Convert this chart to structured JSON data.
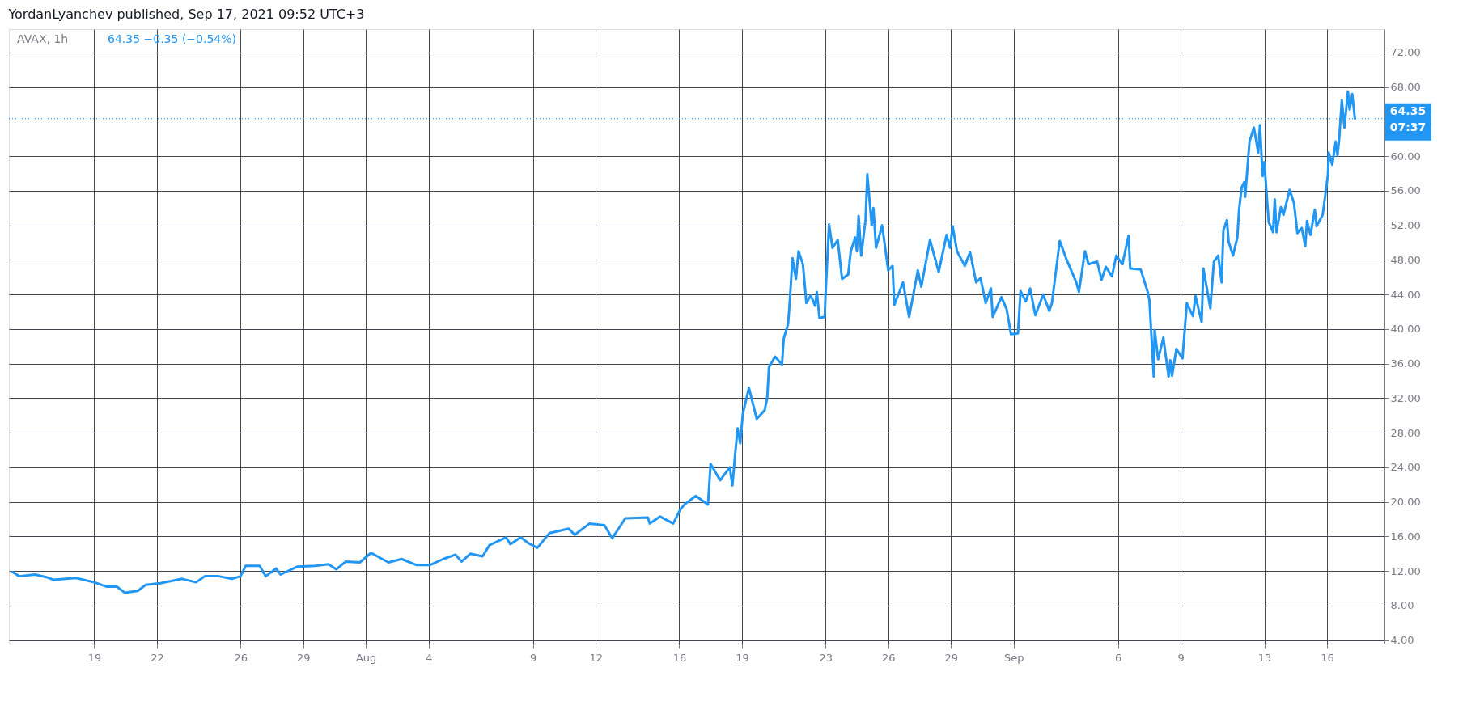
{
  "chart_data": {
    "type": "line",
    "title": "YordanLyanchev published, Sep 17, 2021 09:52 UTC+3",
    "subtitle": "AVAX, 1h",
    "annotations": [
      "64.35 −0.35 (−0.54%)",
      "07:37"
    ],
    "x": [
      "2021-07-15T02:00",
      "2021-07-15T10:00",
      "2021-07-16T04:00",
      "2021-07-16T17:00",
      "2021-07-17T01:00",
      "2021-07-18T03:00",
      "2021-07-19T00:00",
      "2021-07-19T14:00",
      "2021-07-20T02:00",
      "2021-07-20T11:00",
      "2021-07-21T02:00",
      "2021-07-21T11:00",
      "2021-07-22T04:00",
      "2021-07-23T05:00",
      "2021-07-23T21:00",
      "2021-07-24T07:00",
      "2021-07-24T23:00",
      "2021-07-25T14:00",
      "2021-07-26T00:00",
      "2021-07-26T06:00",
      "2021-07-26T22:00",
      "2021-07-27T05:00",
      "2021-07-27T17:00",
      "2021-07-27T22:00",
      "2021-07-28T17:00",
      "2021-07-29T14:00",
      "2021-07-30T05:00",
      "2021-07-30T14:00",
      "2021-07-31T01:00",
      "2021-07-31T17:00",
      "2021-08-01T06:00",
      "2021-08-02T02:00",
      "2021-08-02T17:00",
      "2021-08-03T10:00",
      "2021-08-04T02:00",
      "2021-08-04T17:00",
      "2021-08-05T07:00",
      "2021-08-05T14:00",
      "2021-08-06T00:00",
      "2021-08-06T14:00",
      "2021-08-06T22:00",
      "2021-08-07T17:00",
      "2021-08-07T22:00",
      "2021-08-08T10:00",
      "2021-08-08T19:00",
      "2021-08-09T05:00",
      "2021-08-09T19:00",
      "2021-08-10T17:00",
      "2021-08-11T00:00",
      "2021-08-11T17:00",
      "2021-08-12T10:00",
      "2021-08-12T19:00",
      "2021-08-13T10:00",
      "2021-08-14T12:00",
      "2021-08-14T14:00",
      "2021-08-15T02:00",
      "2021-08-15T17:00",
      "2021-08-16T01:00",
      "2021-08-16T06:00",
      "2021-08-16T19:00",
      "2021-08-17T09:00",
      "2021-08-17T12:00",
      "2021-08-17T23:00",
      "2021-08-18T10:00",
      "2021-08-18T13:00",
      "2021-08-18T17:00",
      "2021-08-18T19:00",
      "2021-08-18T22:00",
      "2021-08-19T01:00",
      "2021-08-19T08:00",
      "2021-08-19T17:00",
      "2021-08-20T02:00",
      "2021-08-20T05:00",
      "2021-08-20T07:00",
      "2021-08-20T14:00",
      "2021-08-20T22:00",
      "2021-08-21T00:00",
      "2021-08-21T05:00",
      "2021-08-21T07:00",
      "2021-08-21T10:00",
      "2021-08-21T14:00",
      "2021-08-21T17:00",
      "2021-08-21T22:00",
      "2021-08-22T02:00",
      "2021-08-22T07:00",
      "2021-08-22T12:00",
      "2021-08-22T14:00",
      "2021-08-22T17:00",
      "2021-08-22T23:00",
      "2021-08-23T00:00",
      "2021-08-23T04:00",
      "2021-08-23T08:00",
      "2021-08-23T14:00",
      "2021-08-23T19:00",
      "2021-08-24T02:00",
      "2021-08-24T05:00",
      "2021-08-24T10:00",
      "2021-08-24T12:00",
      "2021-08-24T14:00",
      "2021-08-24T17:00",
      "2021-08-24T22:00",
      "2021-08-25T00:00",
      "2021-08-25T05:00",
      "2021-08-25T07:00",
      "2021-08-25T10:00",
      "2021-08-25T17:00",
      "2021-08-26T00:00",
      "2021-08-26T05:00",
      "2021-08-26T07:00",
      "2021-08-26T17:00",
      "2021-08-27T00:00",
      "2021-08-27T10:00",
      "2021-08-27T14:00",
      "2021-08-28T00:00",
      "2021-08-28T10:00",
      "2021-08-28T19:00",
      "2021-08-28T23:00",
      "2021-08-29T02:00",
      "2021-08-29T07:00",
      "2021-08-29T16:00",
      "2021-08-29T22:00",
      "2021-08-30T05:00",
      "2021-08-30T10:00",
      "2021-08-30T16:00",
      "2021-08-30T22:00",
      "2021-08-31T00:00",
      "2021-08-31T10:00",
      "2021-08-31T16:00",
      "2021-08-31T21:00",
      "2021-09-01T05:00",
      "2021-09-01T08:00",
      "2021-09-01T14:00",
      "2021-09-01T19:00",
      "2021-09-02T01:00",
      "2021-09-02T10:00",
      "2021-09-02T17:00",
      "2021-09-02T20:00",
      "2021-09-03T05:00",
      "2021-09-03T13:00",
      "2021-09-04T00:00",
      "2021-09-04T03:00",
      "2021-09-04T10:00",
      "2021-09-04T14:00",
      "2021-09-05T00:00",
      "2021-09-05T05:00",
      "2021-09-05T10:00",
      "2021-09-05T17:00",
      "2021-09-05T22:00",
      "2021-09-06T05:00",
      "2021-09-06T12:00",
      "2021-09-06T14:00",
      "2021-09-07T02:00",
      "2021-09-07T10:00",
      "2021-09-07T12:00",
      "2021-09-07T17:00",
      "2021-09-07T18:00",
      "2021-09-07T22:00",
      "2021-09-08T04:00",
      "2021-09-08T10:00",
      "2021-09-08T12:00",
      "2021-09-08T14:00",
      "2021-09-08T19:00",
      "2021-09-09T02:00",
      "2021-09-09T07:00",
      "2021-09-09T14:00",
      "2021-09-09T17:00",
      "2021-09-10T00:00",
      "2021-09-10T02:00",
      "2021-09-10T10:00",
      "2021-09-10T14:00",
      "2021-09-10T19:00",
      "2021-09-10T23:00",
      "2021-09-11T01:00",
      "2021-09-11T05:00",
      "2021-09-11T07:00",
      "2021-09-11T12:00",
      "2021-09-11T17:00",
      "2021-09-11T19:00",
      "2021-09-11T22:00",
      "2021-09-12T01:00",
      "2021-09-12T02:00",
      "2021-09-12T07:00",
      "2021-09-12T12:00",
      "2021-09-12T17:00",
      "2021-09-12T19:00",
      "2021-09-12T22:00",
      "2021-09-13T00:00",
      "2021-09-13T05:00",
      "2021-09-13T10:00",
      "2021-09-13T12:00",
      "2021-09-13T14:00",
      "2021-09-13T19:00",
      "2021-09-13T22:00",
      "2021-09-14T05:00",
      "2021-09-14T10:00",
      "2021-09-14T14:00",
      "2021-09-14T19:00",
      "2021-09-14T23:00",
      "2021-09-15T01:00",
      "2021-09-15T05:00",
      "2021-09-15T10:00",
      "2021-09-15T12:00",
      "2021-09-15T19:00",
      "2021-09-16T01:00",
      "2021-09-16T02:00",
      "2021-09-16T06:00",
      "2021-09-16T10:00",
      "2021-09-16T12:00",
      "2021-09-16T14:00",
      "2021-09-16T17:00",
      "2021-09-16T20:00",
      "2021-09-17T00:00",
      "2021-09-17T02:00",
      "2021-09-17T05:00",
      "2021-09-17T08:00"
    ],
    "series": [
      {
        "color": "#2196f3",
        "values": [
          11.9,
          11.4,
          11.6,
          11.3,
          11.0,
          11.2,
          10.7,
          10.2,
          10.2,
          9.5,
          9.7,
          10.4,
          10.6,
          11.1,
          10.7,
          11.4,
          11.4,
          11.1,
          11.4,
          12.6,
          12.6,
          11.4,
          12.3,
          11.6,
          12.5,
          12.6,
          12.8,
          12.2,
          13.1,
          13.0,
          14.1,
          13.0,
          13.4,
          12.7,
          12.7,
          13.4,
          13.9,
          13.1,
          14.0,
          13.7,
          15.0,
          15.9,
          15.1,
          15.9,
          15.2,
          14.7,
          16.4,
          16.9,
          16.2,
          17.5,
          17.3,
          15.8,
          18.1,
          18.2,
          17.5,
          18.3,
          17.5,
          19.1,
          19.7,
          20.7,
          19.7,
          24.4,
          22.5,
          24.0,
          21.9,
          26.4,
          28.5,
          26.8,
          30.2,
          33.2,
          29.6,
          30.6,
          32.0,
          35.6,
          36.8,
          35.9,
          38.9,
          40.6,
          43.3,
          48.2,
          45.8,
          49.0,
          47.5,
          43.0,
          43.9,
          42.7,
          44.3,
          41.3,
          41.4,
          44.0,
          52.1,
          49.4,
          50.3,
          45.8,
          46.3,
          49.0,
          50.6,
          49.0,
          53.1,
          48.5,
          52.7,
          57.9,
          52.0,
          54.0,
          49.4,
          52.0,
          46.8,
          47.3,
          42.8,
          45.4,
          41.4,
          46.8,
          44.9,
          50.3,
          46.6,
          50.9,
          49.4,
          51.9,
          49.0,
          47.3,
          48.9,
          45.4,
          45.9,
          43.0,
          44.7,
          41.4,
          43.7,
          42.3,
          39.4,
          39.5,
          44.4,
          43.2,
          44.7,
          41.6,
          44.0,
          42.1,
          43.0,
          50.2,
          48.0,
          45.4,
          44.3,
          49.0,
          47.5,
          47.8,
          45.7,
          47.2,
          46.1,
          48.5,
          47.5,
          50.8,
          47.0,
          46.9,
          44.3,
          43.3,
          34.5,
          39.9,
          36.5,
          39.0,
          34.5,
          36.4,
          34.6,
          37.7,
          36.6,
          43.0,
          41.5,
          43.8,
          40.8,
          47.0,
          42.4,
          47.8,
          48.5,
          45.4,
          51.4,
          52.6,
          50.1,
          48.5,
          50.6,
          53.8,
          56.4,
          57.0,
          55.3,
          61.7,
          63.3,
          60.4,
          63.6,
          57.7,
          59.3,
          52.4,
          51.2,
          55.0,
          51.2,
          54.1,
          53.2,
          56.1,
          54.6,
          51.1,
          51.7,
          49.6,
          52.5,
          50.9,
          53.8,
          51.9,
          53.2,
          57.8,
          60.4,
          59.0,
          61.7,
          60.1,
          62.0,
          66.5,
          63.3,
          67.5,
          65.4,
          67.2,
          64.35
        ]
      }
    ],
    "xlim": [
      "2021-07-14T22:00",
      "2021-09-18T18:00"
    ],
    "xticks": [
      {
        "value": "2021-07-19",
        "label": "19"
      },
      {
        "value": "2021-07-22",
        "label": "22"
      },
      {
        "value": "2021-07-26",
        "label": "26"
      },
      {
        "value": "2021-07-29",
        "label": "29"
      },
      {
        "value": "2021-08-01",
        "label": "Aug"
      },
      {
        "value": "2021-08-04",
        "label": "4"
      },
      {
        "value": "2021-08-09",
        "label": "9"
      },
      {
        "value": "2021-08-12",
        "label": "12"
      },
      {
        "value": "2021-08-16",
        "label": "16"
      },
      {
        "value": "2021-08-19",
        "label": "19"
      },
      {
        "value": "2021-08-23",
        "label": "23"
      },
      {
        "value": "2021-08-26",
        "label": "26"
      },
      {
        "value": "2021-08-29",
        "label": "29"
      },
      {
        "value": "2021-09-01",
        "label": "Sep"
      },
      {
        "value": "2021-09-06",
        "label": "6"
      },
      {
        "value": "2021-09-09",
        "label": "9"
      },
      {
        "value": "2021-09-13",
        "label": "13"
      },
      {
        "value": "2021-09-16",
        "label": "16"
      }
    ],
    "ylim": [
      3.6,
      74.7
    ],
    "yticks": [
      {
        "value": 4,
        "label": "4.00"
      },
      {
        "value": 8,
        "label": "8.00"
      },
      {
        "value": 12,
        "label": "12.00"
      },
      {
        "value": 16,
        "label": "16.00"
      },
      {
        "value": 20,
        "label": "20.00"
      },
      {
        "value": 24,
        "label": "24.00"
      },
      {
        "value": 28,
        "label": "28.00"
      },
      {
        "value": 32,
        "label": "32.00"
      },
      {
        "value": 36,
        "label": "36.00"
      },
      {
        "value": 40,
        "label": "40.00"
      },
      {
        "value": 44,
        "label": "44.00"
      },
      {
        "value": 48,
        "label": "48.00"
      },
      {
        "value": 52,
        "label": "52.00"
      },
      {
        "value": 56,
        "label": "56.00"
      },
      {
        "value": 60,
        "label": "60.00"
      },
      {
        "value": 68,
        "label": "68.00"
      },
      {
        "value": 72,
        "label": "72.00"
      }
    ],
    "ref_lines": [
      {
        "axis": "y",
        "value": 64.35,
        "label": "64.35",
        "color": "#2196f3",
        "line_style": "dotted"
      }
    ],
    "grid": true,
    "marker": "none",
    "line_style": "solid"
  }
}
